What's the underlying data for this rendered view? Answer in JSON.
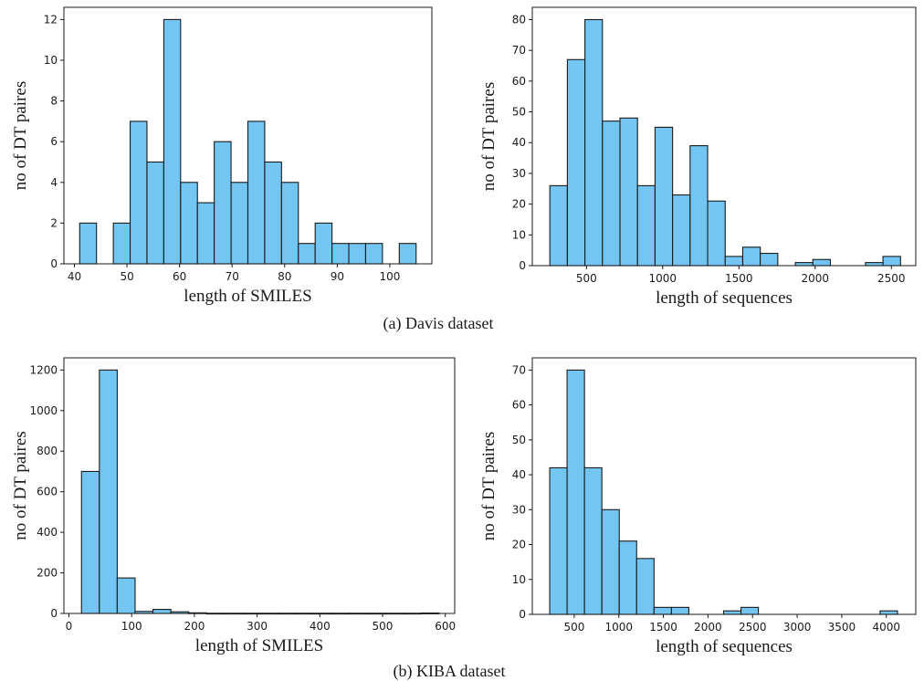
{
  "bar_color": "#73c6f1",
  "edge_color": "#1a1a1a",
  "captions": [
    "(a) Davis dataset",
    "(b) KIBA dataset"
  ],
  "chart_data": [
    {
      "type": "bar",
      "subplot": "top-left",
      "xlabel": "length of SMILES",
      "ylabel": "no of DT paires",
      "xlim": [
        38,
        108
      ],
      "ylim": [
        0,
        12.6
      ],
      "xticks": [
        40,
        50,
        60,
        70,
        80,
        90,
        100
      ],
      "yticks": [
        0,
        2,
        4,
        6,
        8,
        10,
        12
      ],
      "bin_edges": [
        41,
        44.2,
        47.4,
        50.6,
        53.8,
        57,
        60.2,
        63.4,
        66.6,
        69.8,
        73,
        76.2,
        79.4,
        82.6,
        85.8,
        89,
        92.2,
        95.4,
        98.6,
        101.8,
        105
      ],
      "values": [
        2,
        0,
        2,
        7,
        5,
        12,
        4,
        3,
        6,
        4,
        7,
        5,
        4,
        1,
        2,
        1,
        1,
        1,
        0,
        1
      ]
    },
    {
      "type": "bar",
      "subplot": "top-right",
      "xlabel": "length of sequences",
      "ylabel": "no of DT paires",
      "xlim": [
        145,
        2660
      ],
      "ylim": [
        0,
        84
      ],
      "xticks": [
        500,
        1000,
        1500,
        2000,
        2500
      ],
      "yticks": [
        0,
        10,
        20,
        30,
        40,
        50,
        60,
        70,
        80
      ],
      "bin_edges": [
        260,
        375,
        490,
        605,
        720,
        835,
        950,
        1065,
        1180,
        1295,
        1410,
        1525,
        1640,
        1755,
        1870,
        1985,
        2100,
        2215,
        2330,
        2445,
        2560
      ],
      "values": [
        26,
        67,
        80,
        47,
        48,
        26,
        45,
        23,
        39,
        21,
        3,
        6,
        4,
        0,
        1,
        2,
        0,
        0,
        1,
        3
      ]
    },
    {
      "type": "bar",
      "subplot": "bottom-left",
      "xlabel": "length of SMILES",
      "ylabel": "no of DT paires",
      "xlim": [
        -8,
        615
      ],
      "ylim": [
        0,
        1260
      ],
      "xticks": [
        0,
        100,
        200,
        300,
        400,
        500,
        600
      ],
      "yticks": [
        0,
        200,
        400,
        600,
        800,
        1000,
        1200
      ],
      "bin_edges": [
        20,
        48.5,
        77,
        105.5,
        134,
        162.5,
        191,
        219.5,
        248,
        276.5,
        305,
        333.5,
        362,
        390.5,
        419,
        447.5,
        476,
        504.5,
        533,
        561.5,
        590
      ],
      "values": [
        700,
        1200,
        175,
        10,
        20,
        8,
        3,
        1,
        1,
        1,
        1,
        1,
        1,
        1,
        1,
        1,
        1,
        1,
        1,
        2
      ]
    },
    {
      "type": "bar",
      "subplot": "bottom-right",
      "xlabel": "length of sequences",
      "ylabel": "no of DT paires",
      "xlim": [
        30,
        4330
      ],
      "ylim": [
        0,
        73.5
      ],
      "xticks": [
        500,
        1000,
        1500,
        2000,
        2500,
        3000,
        3500,
        4000
      ],
      "yticks": [
        0,
        10,
        20,
        30,
        40,
        50,
        60,
        70
      ],
      "bin_edges": [
        225,
        420,
        615,
        810,
        1005,
        1200,
        1395,
        1590,
        1785,
        1980,
        2175,
        2370,
        2565,
        2760,
        2955,
        3150,
        3345,
        3540,
        3735,
        3930,
        4125
      ],
      "values": [
        42,
        70,
        42,
        30,
        21,
        16,
        2,
        2,
        0,
        0,
        1,
        2,
        0,
        0,
        0,
        0,
        0,
        0,
        0,
        1
      ]
    }
  ]
}
